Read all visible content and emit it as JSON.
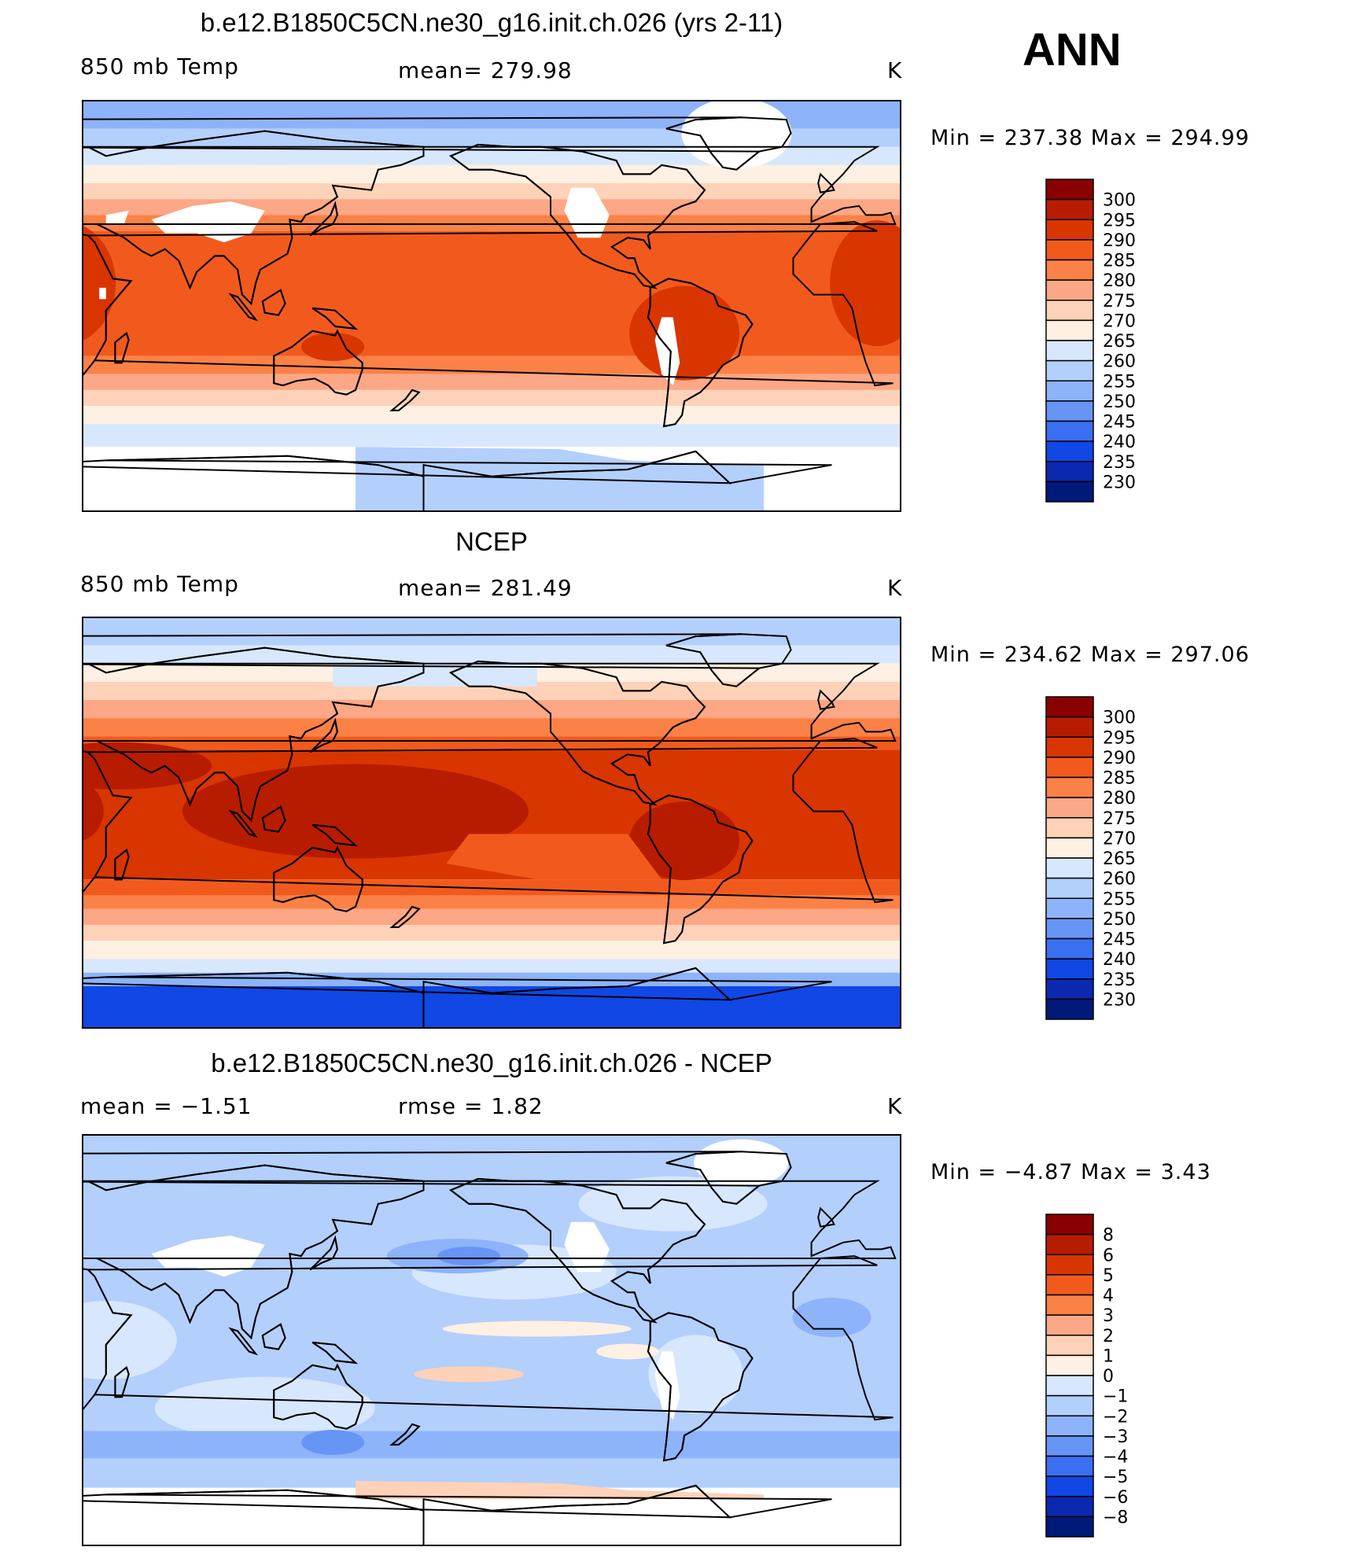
{
  "season": "ANN",
  "panels": [
    {
      "title": "b.e12.B1850C5CN.ne30_g16.init.ch.026 (yrs 2-11)",
      "left": "850 mb Temp",
      "center": "mean=  279.98",
      "right": "K",
      "minmax": "Min  =  237.38  Max  =  294.99"
    },
    {
      "title": "NCEP",
      "left": "850 mb Temp",
      "center": "mean=  281.49",
      "right": "K",
      "minmax": "Min  =  234.62  Max  =  297.06"
    },
    {
      "title": "b.e12.B1850C5CN.ne30_g16.init.ch.026 - NCEP",
      "left": "mean  =    −1.51",
      "center": "rmse  =     1.82",
      "right": "K",
      "minmax": "Min  =    −4.87  Max  =     3.43"
    }
  ],
  "chart_data": [
    {
      "type": "heatmap",
      "title": "b.e12.B1850C5CN.ne30_g16.init.ch.026 (yrs 2-11)",
      "variable": "850 mb Temp",
      "units": "K",
      "mean": 279.98,
      "min": 237.38,
      "max": 294.99,
      "legend_levels": [
        "300",
        "295",
        "290",
        "285",
        "280",
        "275",
        "270",
        "265",
        "260",
        "255",
        "250",
        "245",
        "240",
        "235",
        "230"
      ],
      "colors": [
        "#8a0000",
        "#b81c00",
        "#d93500",
        "#f25a1d",
        "#fb8147",
        "#fca785",
        "#fdd2b8",
        "#fef0e2",
        "#d7e7fd",
        "#b3cffc",
        "#8db3fa",
        "#6695f6",
        "#3b6ff1",
        "#1047e5",
        "#0a28b0",
        "#001a7a"
      ]
    },
    {
      "type": "heatmap",
      "title": "NCEP",
      "variable": "850 mb Temp",
      "units": "K",
      "mean": 281.49,
      "min": 234.62,
      "max": 297.06,
      "legend_levels": [
        "300",
        "295",
        "290",
        "285",
        "280",
        "275",
        "270",
        "265",
        "260",
        "255",
        "250",
        "245",
        "240",
        "235",
        "230"
      ],
      "colors": [
        "#8a0000",
        "#b81c00",
        "#d93500",
        "#f25a1d",
        "#fb8147",
        "#fca785",
        "#fdd2b8",
        "#fef0e2",
        "#d7e7fd",
        "#b3cffc",
        "#8db3fa",
        "#6695f6",
        "#3b6ff1",
        "#1047e5",
        "#0a28b0",
        "#001a7a"
      ]
    },
    {
      "type": "heatmap",
      "title": "b.e12.B1850C5CN.ne30_g16.init.ch.026 - NCEP",
      "units": "K",
      "mean": -1.51,
      "rmse": 1.82,
      "min": -4.87,
      "max": 3.43,
      "legend_levels": [
        "8",
        "6",
        "5",
        "4",
        "3",
        "2",
        "1",
        "0",
        "−1",
        "−2",
        "−3",
        "−4",
        "−5",
        "−6",
        "−8"
      ],
      "colors": [
        "#8a0000",
        "#b81c00",
        "#d93500",
        "#f25a1d",
        "#fb8147",
        "#fca785",
        "#fdd2b8",
        "#fef0e2",
        "#d7e7fd",
        "#b3cffc",
        "#8db3fa",
        "#6695f6",
        "#3b6ff1",
        "#1047e5",
        "#0a28b0",
        "#001a7a"
      ]
    }
  ]
}
